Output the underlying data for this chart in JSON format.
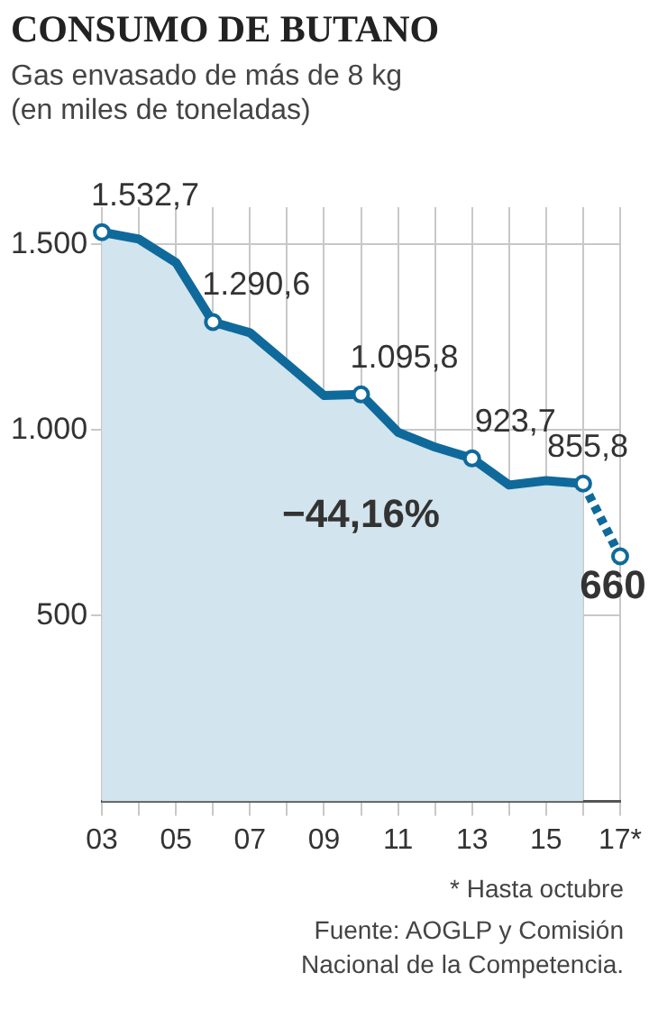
{
  "chart_data": {
    "type": "line",
    "title": "CONSUMO DE BUTANO",
    "subtitle": "Gas envasado de más de 8 kg (en miles de toneladas)",
    "categories": [
      "03",
      null,
      "05",
      null,
      "07",
      null,
      "09",
      null,
      "11",
      null,
      "13",
      null,
      "15",
      null,
      "17*"
    ],
    "series": [
      {
        "type": "area",
        "color": "#0f6a9b",
        "values": [
          1532.7,
          1514,
          1451,
          1290.6,
          1262,
          1178,
          1093,
          1095.8,
          994,
          954,
          923.7,
          852,
          864,
          855.8,
          null
        ],
        "value_labels": [
          "1.532,7",
          null,
          null,
          "1.290,6",
          null,
          null,
          null,
          "1.095,8",
          null,
          null,
          "923,7",
          null,
          null,
          "855,8",
          null
        ]
      },
      {
        "color": "#0f6a9b",
        "line_style": "dotted",
        "marker": "circle",
        "values": [
          null,
          null,
          null,
          null,
          null,
          null,
          null,
          null,
          null,
          null,
          null,
          null,
          null,
          855.8,
          660
        ],
        "value_labels": [
          null,
          null,
          null,
          null,
          null,
          null,
          null,
          null,
          null,
          null,
          null,
          null,
          null,
          null,
          "660"
        ]
      }
    ],
    "ylim": [
      0,
      1600
    ],
    "yticks": [
      {
        "value": 500,
        "label": "500"
      },
      {
        "value": 1000,
        "label": "1.000"
      },
      {
        "value": 1500,
        "label": "1.500"
      }
    ],
    "grid": true,
    "legend": false,
    "annotations": [
      "−44,16%",
      "* Hasta octubre",
      "Fuente: AOGLP y Comisión Nacional de la Competencia."
    ]
  }
}
